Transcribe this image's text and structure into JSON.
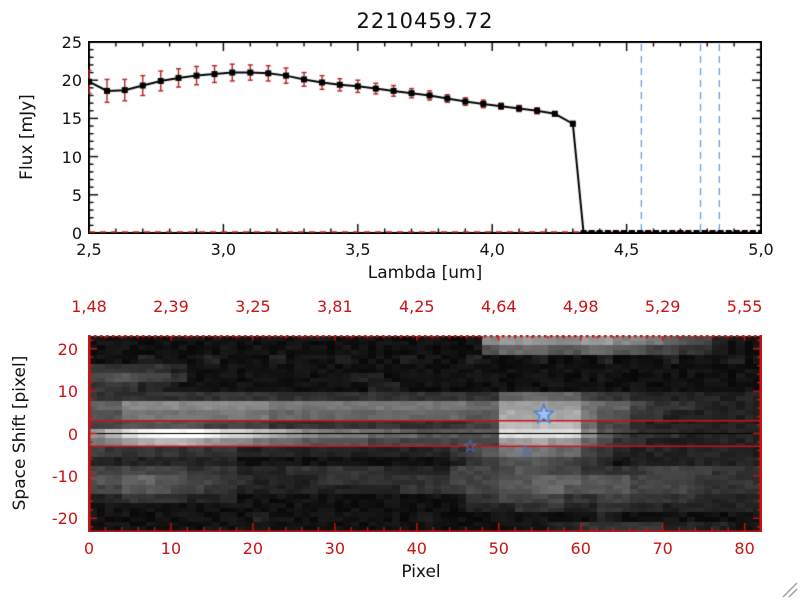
{
  "colors": {
    "frame_black": "#000000",
    "axis_red": "#c81414",
    "error_red": "#b82020",
    "vline_blue": "#6aa0d8",
    "zero_dash_red": "#d42020",
    "star_fill": "#9fc0ee",
    "star_stroke": "#4a7fd0",
    "grip_gray": "#a0a0a0"
  },
  "chart_data": [
    {
      "type": "line",
      "title": "2210459.72",
      "xlabel": "Lambda [um]",
      "ylabel": "Flux [mJy]",
      "xlim": [
        2.5,
        5.0
      ],
      "ylim": [
        0,
        25
      ],
      "x_ticks": [
        2.5,
        3.0,
        3.5,
        4.0,
        4.5,
        5.0
      ],
      "x_tick_labels": [
        "2,5",
        "3,0",
        "3,5",
        "4,0",
        "4,5",
        "5,0"
      ],
      "y_ticks": [
        0,
        5,
        10,
        15,
        20,
        25
      ],
      "y_tick_labels": [
        "0",
        "5",
        "10",
        "15",
        "20",
        "25"
      ],
      "x": [
        2.5,
        2.567,
        2.633,
        2.7,
        2.767,
        2.833,
        2.9,
        2.967,
        3.033,
        3.1,
        3.167,
        3.233,
        3.3,
        3.367,
        3.433,
        3.5,
        3.567,
        3.633,
        3.7,
        3.767,
        3.833,
        3.9,
        3.967,
        4.033,
        4.1,
        4.167,
        4.233,
        4.3,
        4.34,
        4.37,
        4.4,
        4.43,
        4.46,
        4.49,
        4.52,
        4.55,
        4.58,
        4.61,
        4.64,
        4.67,
        4.7,
        4.73,
        4.76,
        4.79,
        4.82,
        4.85,
        4.88,
        4.91,
        4.94,
        4.97,
        5.0
      ],
      "y": [
        19.8,
        18.6,
        18.7,
        19.3,
        19.9,
        20.3,
        20.6,
        20.8,
        21.0,
        21.0,
        20.9,
        20.6,
        20.1,
        19.7,
        19.4,
        19.2,
        18.9,
        18.6,
        18.3,
        18.0,
        17.6,
        17.2,
        16.9,
        16.6,
        16.3,
        16.0,
        15.6,
        14.3,
        0,
        0,
        0,
        0,
        0,
        0,
        0,
        0,
        0,
        0,
        0,
        0,
        0,
        0,
        0,
        0,
        0,
        0,
        0,
        0,
        0,
        0,
        0
      ],
      "yerr": [
        1.5,
        1.5,
        1.4,
        1.3,
        1.3,
        1.2,
        1.2,
        1.1,
        1.1,
        1.0,
        1.0,
        1.0,
        0.9,
        0.9,
        0.8,
        0.8,
        0.7,
        0.7,
        0.6,
        0.6,
        0.5,
        0.5,
        0.5,
        0.4,
        0.4,
        0.4,
        0.3,
        0.3,
        0,
        0,
        0,
        0,
        0,
        0,
        0,
        0,
        0,
        0,
        0,
        0,
        0,
        0,
        0,
        0,
        0,
        0,
        0,
        0,
        0,
        0,
        0
      ],
      "vlines": [
        4.555,
        4.775,
        4.845
      ],
      "zero_line": 0
    },
    {
      "type": "heatmap",
      "xlabel": "Pixel",
      "ylabel": "Space Shift [pixel]",
      "xlim": [
        0,
        82
      ],
      "ylim": [
        -23,
        23
      ],
      "x_ticks": [
        0,
        10,
        20,
        30,
        40,
        50,
        60,
        70,
        80
      ],
      "x_tick_labels": [
        "0",
        "10",
        "20",
        "30",
        "40",
        "50",
        "60",
        "70",
        "80"
      ],
      "y_ticks": [
        20,
        10,
        0,
        -10,
        -20
      ],
      "y_tick_labels": [
        "20",
        "10",
        "0",
        "-10",
        "-20"
      ],
      "top_axis_ticks": [
        0,
        10,
        20,
        30,
        40,
        50,
        60,
        70,
        80
      ],
      "top_axis_labels": [
        "1,48",
        "2,39",
        "3,25",
        "3,81",
        "4,25",
        "4,64",
        "4,98",
        "5,29",
        "5,55"
      ],
      "aperture_lines": [
        3,
        -3
      ],
      "center_line": 0,
      "stars": [
        {
          "x": 55.5,
          "y": 4.5,
          "size": 10,
          "style": "filled"
        },
        {
          "x": 46.5,
          "y": -3.0,
          "size": 6,
          "style": "faint"
        },
        {
          "x": 53.2,
          "y": -4.2,
          "size": 6,
          "style": "faint"
        }
      ],
      "image_rows": [
        "11111111111111111111111189998899887654211",
        "11111111111111111111111156665566554433211",
        "11121112111211121112111211121112111211121",
        "33333211111111111111111111111111111111111",
        "45544311111111112211111111111111111111111",
        "33322111111111111221111111111111111111111",
        "33333333333333333333333336666643322222222",
        "66888888888777777777777669999976643332222",
        "5577777777766666666666655aaaaa75533222222",
        "4455555444433333333333344bbbbb64432222222",
        "9bdefffedcba9877766655555ddddd85433322222",
        "789abba98876655554444444499a9964332222222",
        "43333333322222222222223457776643222222222",
        "22222222211111111111112345554432122222222",
        "44444433322233333322224444554433334444333",
        "55665544332222333333334445566655544443333",
        "44555443322222222223333445566555544443333",
        "22333322211111111111111334444334433332222",
        "11111111111111111111111222333223322222222",
        "11111111112111111111211111111112111111111",
        "11111111111111111111111111112233333222211"
      ]
    }
  ]
}
